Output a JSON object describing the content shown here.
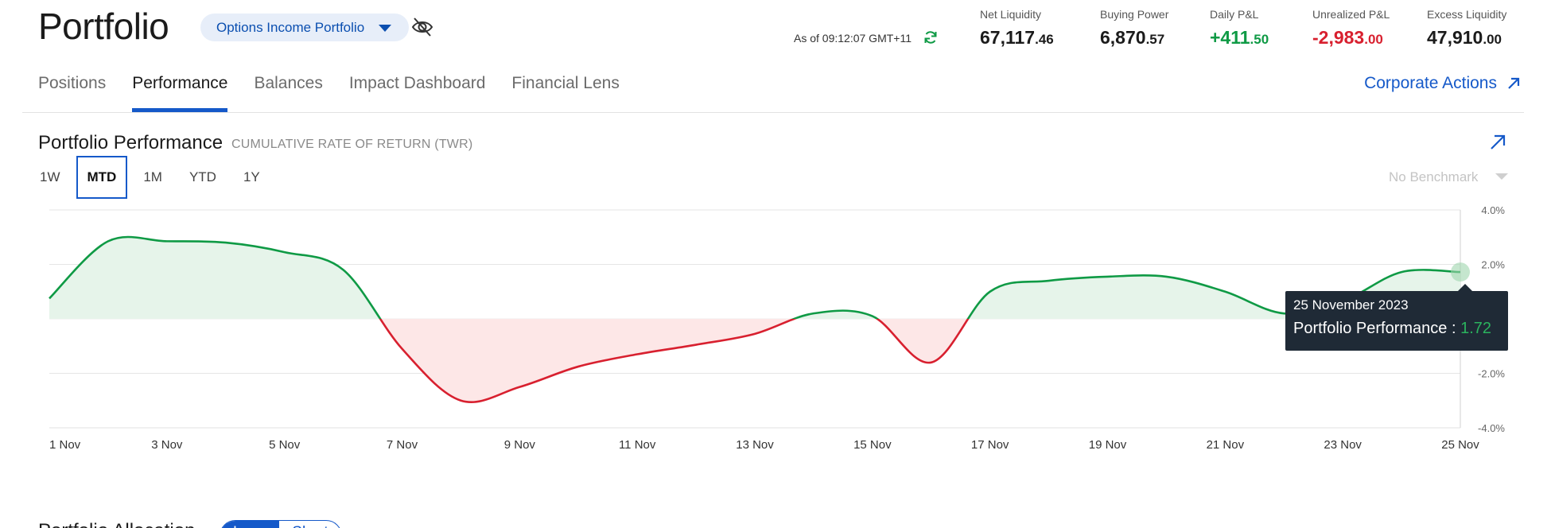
{
  "header": {
    "title": "Portfolio",
    "account": "Options Income Portfolio",
    "as_of": "As of 09:12:07 GMT+11"
  },
  "metrics": [
    {
      "label": "Net Liquidity",
      "main": "67,117",
      "cents": ".46",
      "tone": "neutral"
    },
    {
      "label": "Buying Power",
      "main": "6,870",
      "cents": ".57",
      "tone": "neutral"
    },
    {
      "label": "Daily P&L",
      "main": "+411",
      "cents": ".50",
      "tone": "pos"
    },
    {
      "label": "Unrealized P&L",
      "main": "-2,983",
      "cents": ".00",
      "tone": "neg"
    },
    {
      "label": "Excess Liquidity",
      "main": "47,910",
      "cents": ".00",
      "tone": "neutral"
    }
  ],
  "tabs": [
    "Positions",
    "Performance",
    "Balances",
    "Impact Dashboard",
    "Financial Lens"
  ],
  "active_tab": "Performance",
  "corporate_actions": "Corporate Actions",
  "performance": {
    "title": "Portfolio Performance",
    "subtitle": "CUMULATIVE RATE OF RETURN (TWR)",
    "ranges": [
      "1W",
      "MTD",
      "1M",
      "YTD",
      "1Y"
    ],
    "active_range": "MTD",
    "benchmark": "No Benchmark"
  },
  "tooltip": {
    "date": "25 November 2023",
    "label": "Portfolio Performance : ",
    "value": "1.72"
  },
  "allocation": {
    "title": "Portfolio Allocation",
    "toggle": [
      "Long",
      "Short"
    ],
    "active": "Long"
  },
  "colors": {
    "accent": "#1559c9",
    "positive": "#0f9a45",
    "negative": "#d8202f",
    "positive_fill": "#e6f4ea",
    "negative_fill": "#fde7e7"
  },
  "chart_data": {
    "type": "area",
    "xlabel": "",
    "ylabel": "",
    "ylim": [
      -4,
      4
    ],
    "yticks": [
      "4.0%",
      "2.0%",
      "-2.0%",
      "-4.0%"
    ],
    "ytick_values": [
      4,
      2,
      -2,
      -4
    ],
    "xtick_labels": [
      "1 Nov",
      "3 Nov",
      "5 Nov",
      "7 Nov",
      "9 Nov",
      "11 Nov",
      "13 Nov",
      "15 Nov",
      "17 Nov",
      "19 Nov",
      "21 Nov",
      "23 Nov",
      "25 Nov"
    ],
    "xtick_days": [
      1,
      3,
      5,
      7,
      9,
      11,
      13,
      15,
      17,
      19,
      21,
      23,
      25
    ],
    "x_range": [
      1,
      25
    ],
    "series": [
      {
        "values": [
          [
            1,
            0.75
          ],
          [
            2,
            2.85
          ],
          [
            3,
            2.85
          ],
          [
            4,
            2.8
          ],
          [
            5,
            2.45
          ],
          [
            6,
            1.8
          ],
          [
            7,
            -1.1
          ],
          [
            8,
            -3.0
          ],
          [
            9,
            -2.5
          ],
          [
            10,
            -1.75
          ],
          [
            11,
            -1.3
          ],
          [
            12,
            -0.95
          ],
          [
            13,
            -0.55
          ],
          [
            14,
            0.2
          ],
          [
            15,
            0.1
          ],
          [
            16,
            -1.6
          ],
          [
            17,
            1.0
          ],
          [
            18,
            1.4
          ],
          [
            19,
            1.55
          ],
          [
            20,
            1.55
          ],
          [
            21,
            1.0
          ],
          [
            22,
            0.2
          ],
          [
            23,
            0.65
          ],
          [
            24,
            1.72
          ],
          [
            25,
            1.72
          ]
        ]
      }
    ],
    "highlight": {
      "x": 25,
      "y": 1.72
    }
  }
}
